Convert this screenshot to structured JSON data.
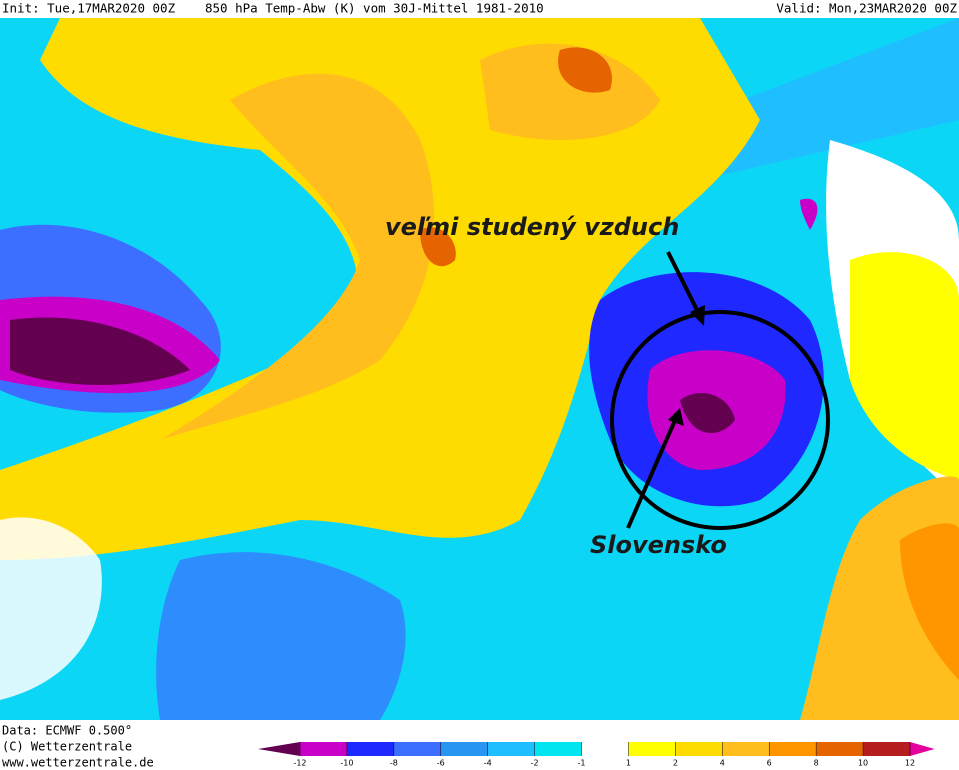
{
  "header": {
    "init": "Init: Tue,17MAR2020 00Z",
    "title": "850 hPa Temp-Abw (K) vom 30J-Mittel 1981-2010",
    "valid": "Valid: Mon,23MAR2020 00Z"
  },
  "annotations": {
    "cold_air": "veľmi studený vzduch",
    "country": "Slovensko"
  },
  "footer": {
    "data": "Data: ECMWF  0.500°",
    "copyright": "(C) Wetterzentrale",
    "url": "www.wetterzentrale.de"
  },
  "colorbar": {
    "ticks": [
      -12,
      -10,
      -8,
      -6,
      -4,
      -2,
      -1,
      1,
      2,
      4,
      6,
      8,
      10,
      12
    ],
    "colors": [
      "#640050",
      "#c800c8",
      "#1e28ff",
      "#3c6eff",
      "#2896f0",
      "#1ebeff",
      "#00e6f0",
      "#ffffff",
      "#ffff00",
      "#ffdc00",
      "#ffbe1e",
      "#ff9600",
      "#e66400",
      "#b41e1e",
      "#e6009b"
    ]
  }
}
